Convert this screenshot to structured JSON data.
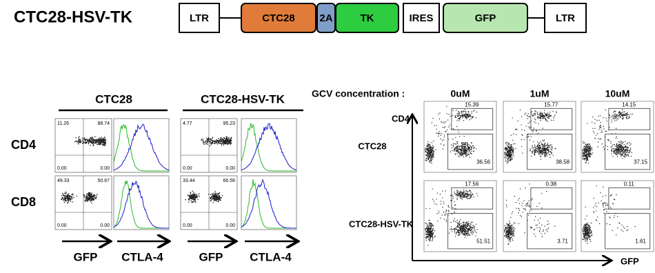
{
  "construct": {
    "title": "CTC28-HSV-TK",
    "elements": [
      "LTR",
      "CTC28",
      "2A",
      "TK",
      "IRES",
      "GFP",
      "LTR"
    ]
  },
  "left": {
    "columns": [
      "CTC28",
      "CTC28-HSV-TK"
    ],
    "rows": [
      "CD4",
      "CD8"
    ],
    "plots": [
      [
        {
          "ul": "11.26",
          "ur": "88.74",
          "ll": "0.00",
          "lr": "0.00"
        },
        {
          "ul": "4.77",
          "ur": "95.23",
          "ll": "0.00",
          "lr": "0.00"
        }
      ],
      [
        {
          "ul": "49.33",
          "ur": "50.67",
          "ll": "0.00",
          "lr": "0.00"
        },
        {
          "ul": "33.44",
          "ur": "66.56",
          "ll": "0.00",
          "lr": "0.00"
        }
      ]
    ],
    "x_labels": [
      "GFP",
      "CTLA-4",
      "GFP",
      "CTLA-4"
    ]
  },
  "right": {
    "label": "GCV concentration :",
    "concentrations": [
      "0uM",
      "1uM",
      "10uM"
    ],
    "rows": [
      "CTC28",
      "CTC28-HSV-TK"
    ],
    "plots": [
      [
        {
          "upper": "15.39",
          "lower": "36.56"
        },
        {
          "upper": "15.77",
          "lower": "38.58"
        },
        {
          "upper": "14.15",
          "lower": "37.15"
        }
      ],
      [
        {
          "upper": "17.56",
          "lower": "51.51"
        },
        {
          "upper": "0.38",
          "lower": "3.71"
        },
        {
          "upper": "0.11",
          "lower": "1.61"
        }
      ]
    ],
    "y_axis": "CD4",
    "x_axis": "GFP"
  }
}
